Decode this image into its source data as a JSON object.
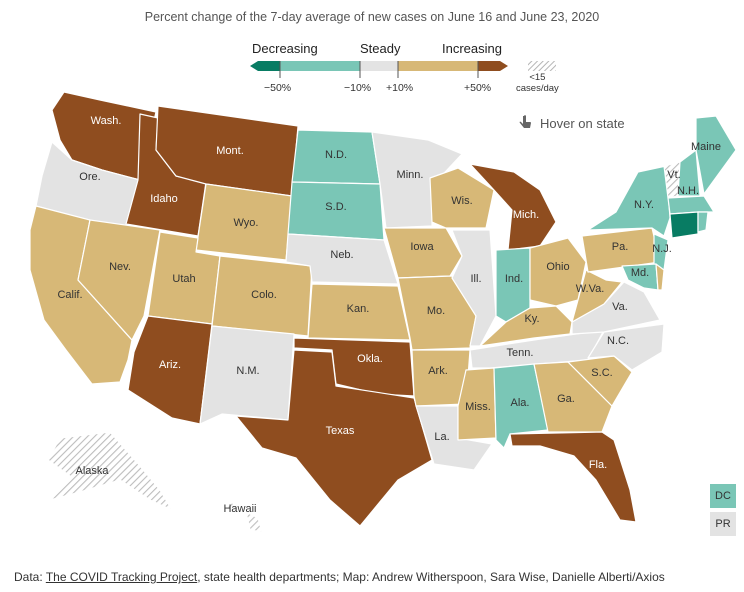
{
  "title": "Percent change of the 7-day average of new cases on June 16 and June 23, 2020",
  "legend": {
    "categories": [
      "Decreasing",
      "Steady",
      "Increasing"
    ],
    "ticks": [
      "−50%",
      "−10%",
      "+10%",
      "+50%"
    ],
    "hatch_note_line1": "<15",
    "hatch_note_line2": "cases/day"
  },
  "hover_hint": "Hover on state",
  "colors": {
    "strong_decrease": "#087c63",
    "decrease": "#7ac6b6",
    "steady": "#e3e3e3",
    "increase": "#d7b877",
    "strong_increase": "#8f4d1f"
  },
  "states": [
    {
      "abbr": "Wash.",
      "category": "strong_increase"
    },
    {
      "abbr": "Ore.",
      "category": "steady"
    },
    {
      "abbr": "Calif.",
      "category": "increase"
    },
    {
      "abbr": "Idaho",
      "category": "strong_increase"
    },
    {
      "abbr": "Nev.",
      "category": "increase"
    },
    {
      "abbr": "Mont.",
      "category": "strong_increase"
    },
    {
      "abbr": "Wyo.",
      "category": "increase"
    },
    {
      "abbr": "Utah",
      "category": "increase"
    },
    {
      "abbr": "Colo.",
      "category": "increase"
    },
    {
      "abbr": "Ariz.",
      "category": "strong_increase"
    },
    {
      "abbr": "N.M.",
      "category": "steady"
    },
    {
      "abbr": "N.D.",
      "category": "decrease"
    },
    {
      "abbr": "S.D.",
      "category": "decrease"
    },
    {
      "abbr": "Neb.",
      "category": "steady"
    },
    {
      "abbr": "Kan.",
      "category": "increase"
    },
    {
      "abbr": "Okla.",
      "category": "strong_increase"
    },
    {
      "abbr": "Texas",
      "category": "strong_increase"
    },
    {
      "abbr": "Minn.",
      "category": "steady"
    },
    {
      "abbr": "Iowa",
      "category": "increase"
    },
    {
      "abbr": "Mo.",
      "category": "increase"
    },
    {
      "abbr": "Ark.",
      "category": "increase"
    },
    {
      "abbr": "La.",
      "category": "steady"
    },
    {
      "abbr": "Wis.",
      "category": "increase"
    },
    {
      "abbr": "Ill.",
      "category": "steady"
    },
    {
      "abbr": "Mich.",
      "category": "strong_increase"
    },
    {
      "abbr": "Ind.",
      "category": "decrease"
    },
    {
      "abbr": "Ohio",
      "category": "increase"
    },
    {
      "abbr": "Ky.",
      "category": "increase"
    },
    {
      "abbr": "Tenn.",
      "category": "steady"
    },
    {
      "abbr": "Miss.",
      "category": "increase"
    },
    {
      "abbr": "Ala.",
      "category": "decrease"
    },
    {
      "abbr": "Ga.",
      "category": "increase"
    },
    {
      "abbr": "Fla.",
      "category": "strong_increase"
    },
    {
      "abbr": "S.C.",
      "category": "increase"
    },
    {
      "abbr": "N.C.",
      "category": "steady"
    },
    {
      "abbr": "Va.",
      "category": "steady"
    },
    {
      "abbr": "W.Va.",
      "category": "increase"
    },
    {
      "abbr": "Pa.",
      "category": "increase"
    },
    {
      "abbr": "N.Y.",
      "category": "decrease"
    },
    {
      "abbr": "N.J.",
      "category": "decrease"
    },
    {
      "abbr": "Md.",
      "category": "decrease"
    },
    {
      "abbr": "Vt.",
      "category": "hatched"
    },
    {
      "abbr": "N.H.",
      "category": "decrease"
    },
    {
      "abbr": "Maine",
      "category": "decrease"
    },
    {
      "abbr": "Alaska",
      "category": "hatched"
    },
    {
      "abbr": "Hawaii",
      "category": "hatched"
    }
  ],
  "territories": [
    {
      "abbr": "DC",
      "category": "decrease"
    },
    {
      "abbr": "PR",
      "category": "steady"
    }
  ],
  "footer": {
    "prefix": "Data: ",
    "source_link": "The COVID Tracking Project",
    "suffix": ", state health departments; Map: Andrew Witherspoon, Sara Wise, Danielle Alberti/Axios"
  }
}
